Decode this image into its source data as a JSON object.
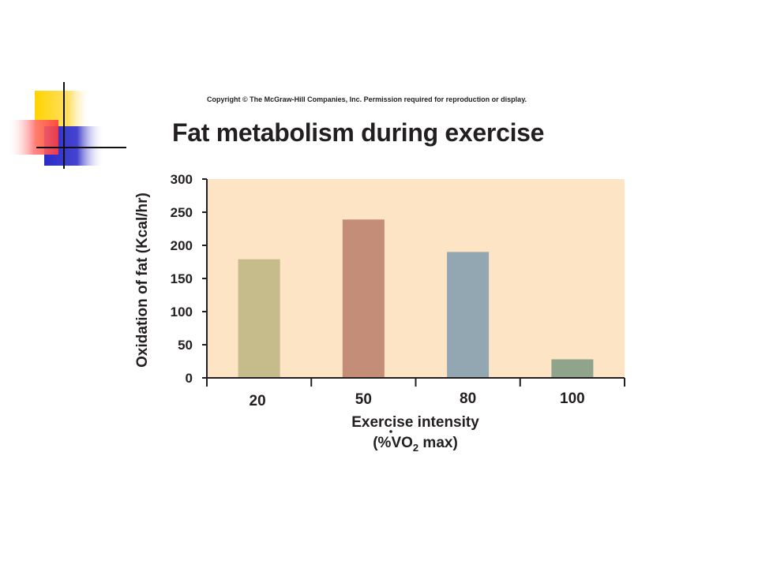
{
  "slide": {
    "copyright": "Copyright © The McGraw-Hill Companies, Inc. Permission required for reproduction or display."
  },
  "colors": {
    "plot_bg": "#fce4c4",
    "axis": "#231f20",
    "bar_colors": [
      "#c6bb8a",
      "#c48d78",
      "#92a7b1",
      "#8fa48a"
    ],
    "deco_yellow": "#ffd400",
    "deco_red": "#ff4d4d",
    "deco_blue": "#3333cc"
  },
  "chart_data": {
    "type": "bar",
    "title": "Fat metabolism during exercise",
    "xlabel": "Exercise intensity",
    "xlabel_line2_prefix": "(%",
    "xlabel_line2_v": "V",
    "xlabel_line2_o": "O",
    "xlabel_line2_sub": "2",
    "xlabel_line2_suffix": " max)",
    "ylabel": "Oxidation of fat (Kcal/hr)",
    "categories": [
      "20",
      "50",
      "80",
      "100"
    ],
    "values": [
      179,
      239,
      190,
      28
    ],
    "ylim": [
      0,
      300
    ],
    "yticks": [
      0,
      50,
      100,
      150,
      200,
      250,
      300
    ],
    "grid": false,
    "legend": "none"
  }
}
